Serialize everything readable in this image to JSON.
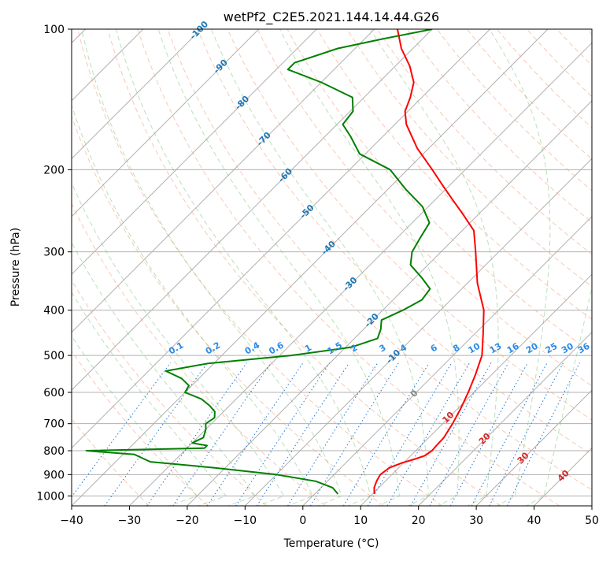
{
  "chart_data": {
    "type": "line",
    "subtype": "skew-t log-p diagram",
    "title": "wetPf2_C2E5.2021.144.14.44.G26",
    "xlabel": "Temperature (°C)",
    "ylabel": "Pressure (hPa)",
    "xlim": [
      -40,
      50
    ],
    "ylim": [
      1050,
      100
    ],
    "y_scale": "log",
    "grid": true,
    "x_ticks": [
      -40,
      -30,
      -20,
      -10,
      0,
      10,
      20,
      30,
      40,
      50
    ],
    "y_ticks": [
      100,
      200,
      300,
      400,
      500,
      600,
      700,
      800,
      900,
      1000
    ],
    "series": [
      {
        "color": "#ff0000",
        "pressure": [
          990,
          960,
          930,
          900,
          870,
          850,
          835,
          820,
          800,
          780,
          750,
          700,
          650,
          600,
          550,
          500,
          450,
          400,
          350,
          300,
          270,
          250,
          230,
          215,
          200,
          180,
          160,
          150,
          140,
          130,
          120,
          110,
          100
        ],
        "temperature": [
          10.3,
          9.2,
          8.5,
          8.0,
          8.4,
          9.7,
          11.2,
          12.4,
          12.8,
          12.7,
          12.6,
          11.7,
          10.5,
          9.0,
          7.2,
          5.0,
          1.5,
          -2.5,
          -8.3,
          -14.0,
          -18.0,
          -22.5,
          -27.5,
          -31.5,
          -35.7,
          -42.0,
          -48.0,
          -50.5,
          -52.0,
          -54.0,
          -57.5,
          -62.0,
          -66.0
        ]
      },
      {
        "color": "#008000",
        "pressure": [
          990,
          960,
          930,
          900,
          870,
          845,
          830,
          815,
          800,
          790,
          780,
          770,
          750,
          720,
          700,
          680,
          660,
          640,
          620,
          600,
          580,
          560,
          540,
          520,
          500,
          480,
          460,
          440,
          420,
          400,
          380,
          360,
          340,
          320,
          300,
          280,
          260,
          240,
          220,
          200,
          185,
          170,
          160,
          150,
          140,
          130,
          122,
          118,
          110,
          105,
          100
        ],
        "temperature": [
          4.0,
          2.0,
          -2.0,
          -10.0,
          -22.0,
          -34.0,
          -36.0,
          -38.0,
          -47.0,
          -27.0,
          -27.0,
          -30.0,
          -29.0,
          -30.0,
          -31.0,
          -30.5,
          -31.5,
          -33.5,
          -36.0,
          -40.0,
          -40.5,
          -43.0,
          -47.0,
          -41.0,
          -28.0,
          -19.0,
          -16.0,
          -17.0,
          -18.5,
          -16.5,
          -15.0,
          -15.5,
          -19.0,
          -23.0,
          -25.0,
          -26.0,
          -27.0,
          -31.0,
          -37.0,
          -43.0,
          -51.0,
          -55.5,
          -59.0,
          -59.5,
          -62.0,
          -70.0,
          -78.0,
          -78.0,
          -73.0,
          -67.0,
          -60.0
        ]
      }
    ],
    "isotherm_labels": [
      "-100",
      "-90",
      "-80",
      "-70",
      "-60",
      "-50",
      "-40",
      "-30",
      "-20",
      "-10",
      "0",
      "10",
      "20",
      "30",
      "40"
    ],
    "mixing_ratio_labels": [
      "0.1",
      "0.2",
      "0.4",
      "0.6",
      "1",
      "1.5",
      "2",
      "3",
      "4",
      "6",
      "8",
      "10",
      "13",
      "16",
      "20",
      "25",
      "30",
      "36"
    ]
  }
}
